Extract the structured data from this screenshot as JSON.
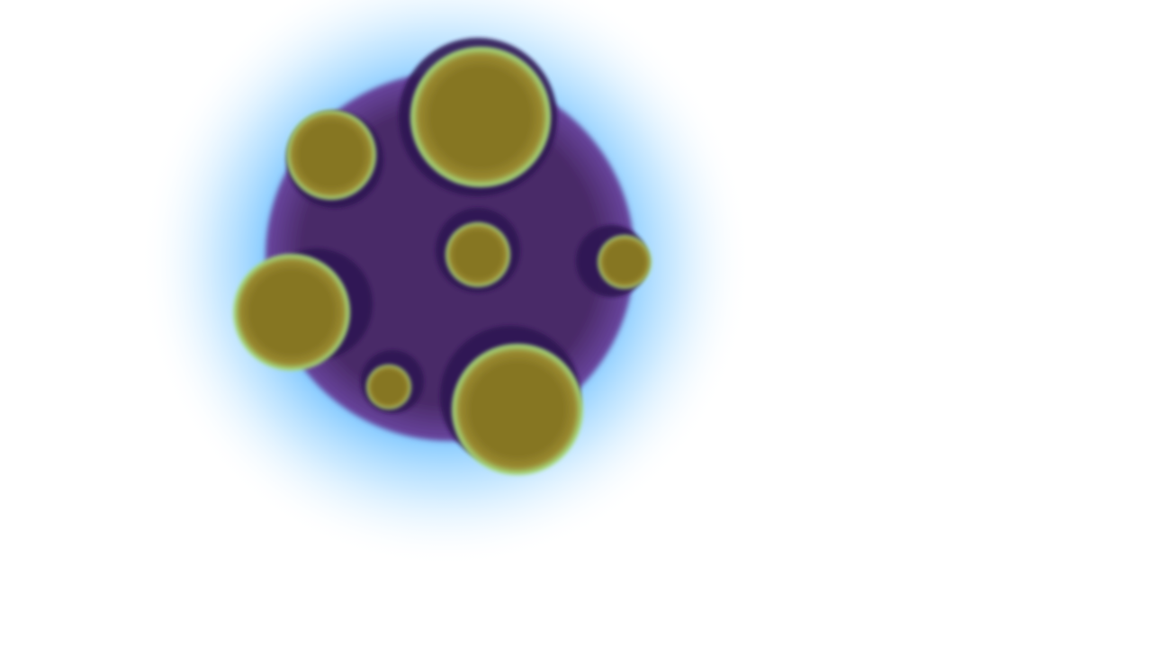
{
  "scene": {
    "background_color": "#ffffff",
    "objects": [
      {
        "kind": "planet",
        "icon": "spotted-planet-icon",
        "colors": {
          "glow": "#5cb8ff",
          "body": "#4a2a68",
          "body_rim": "#6a46a0",
          "crater_shadow": "#2f1452",
          "spot": "#867624",
          "spot_rim": "#a8e88a"
        }
      }
    ]
  }
}
